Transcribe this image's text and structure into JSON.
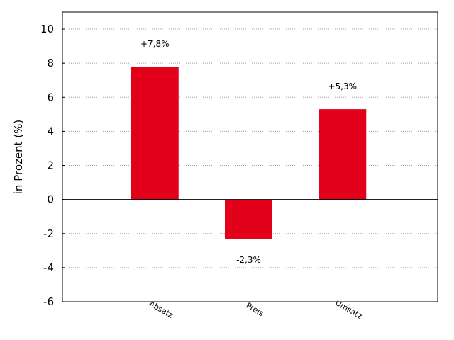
{
  "chart_data": {
    "type": "bar",
    "categories": [
      "Absatz",
      "Preis",
      "Umsatz"
    ],
    "values": [
      7.8,
      -2.3,
      5.3
    ],
    "data_labels": [
      "+7,8%",
      "-2,3%",
      "+5,3%"
    ],
    "title": "",
    "xlabel": "",
    "ylabel": "in Prozent (%)",
    "ylim": [
      -6,
      11
    ],
    "yticks": [
      -6,
      -4,
      -2,
      0,
      2,
      4,
      6,
      8,
      10
    ],
    "grid": "horizontal-dotted",
    "bar_color": "#e3001b"
  }
}
